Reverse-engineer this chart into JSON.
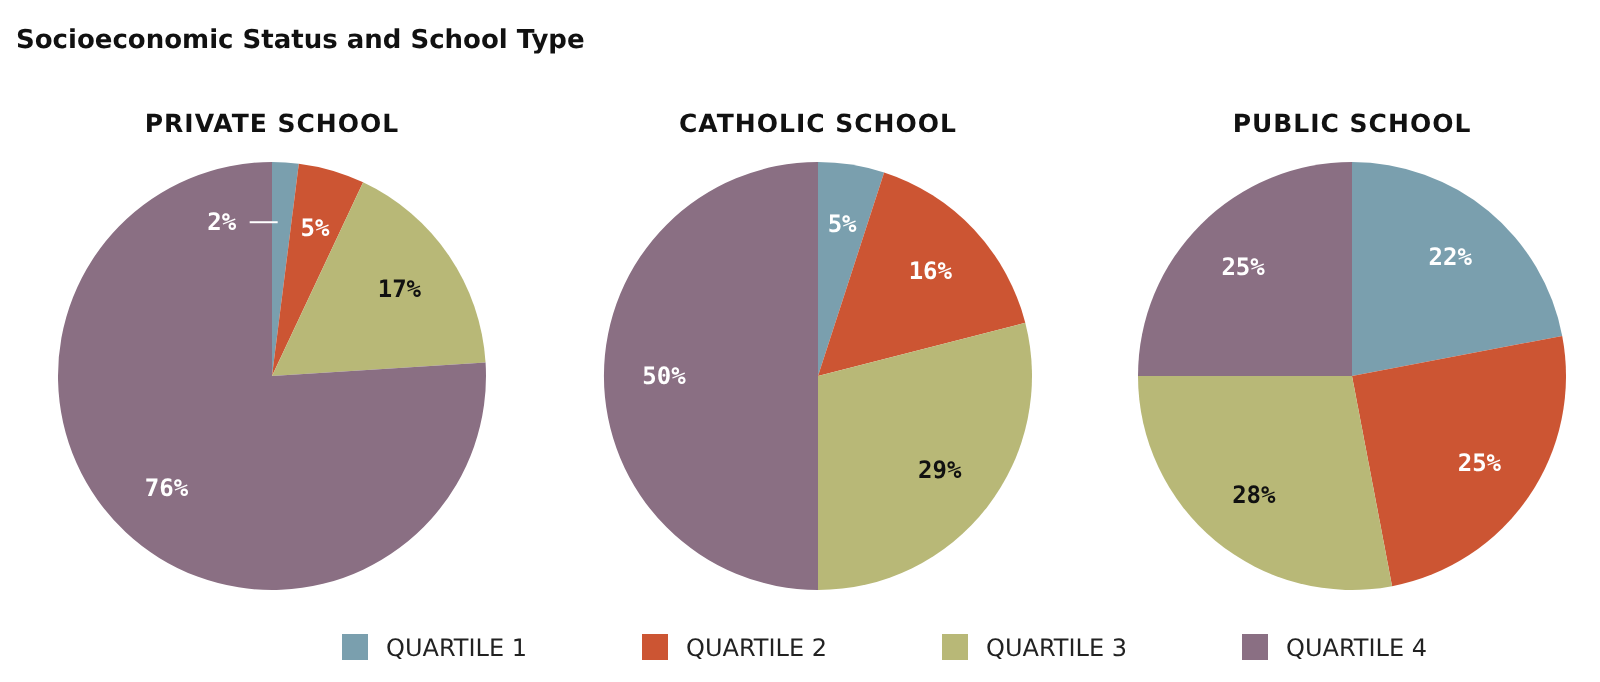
{
  "chart_data": [
    {
      "type": "pie",
      "title": "PRIVATE SCHOOL",
      "annotations": [
        "Socioeconomic Status and School Type"
      ],
      "categories": [
        "QUARTILE 1",
        "QUARTILE 2",
        "QUARTILE 3",
        "QUARTILE 4"
      ],
      "values": [
        2,
        5,
        17,
        76
      ],
      "value_labels": [
        "2%",
        "5%",
        "17%",
        "76%"
      ],
      "colors": [
        "#7a9fae",
        "#cc5533",
        "#b8b877",
        "#8a6f83"
      ],
      "legend": "bottom"
    },
    {
      "type": "pie",
      "title": "CATHOLIC SCHOOL",
      "categories": [
        null,
        null,
        null,
        null
      ],
      "values": [
        5,
        16,
        29,
        50
      ],
      "value_labels": [
        "5%",
        "16%",
        "29%",
        "50%"
      ],
      "colors": [
        "#7a9fae",
        "#cc5533",
        "#b8b877",
        "#8a6f83"
      ]
    },
    {
      "type": "pie",
      "title": "PUBLIC SCHOOL",
      "categories": [
        null,
        null,
        null,
        null
      ],
      "values": [
        22,
        25,
        28,
        25
      ],
      "value_labels": [
        "22%",
        "25%",
        "28%",
        "25%"
      ],
      "colors": [
        "#7a9fae",
        "#cc5533",
        "#b8b877",
        "#8a6f83"
      ]
    }
  ]
}
